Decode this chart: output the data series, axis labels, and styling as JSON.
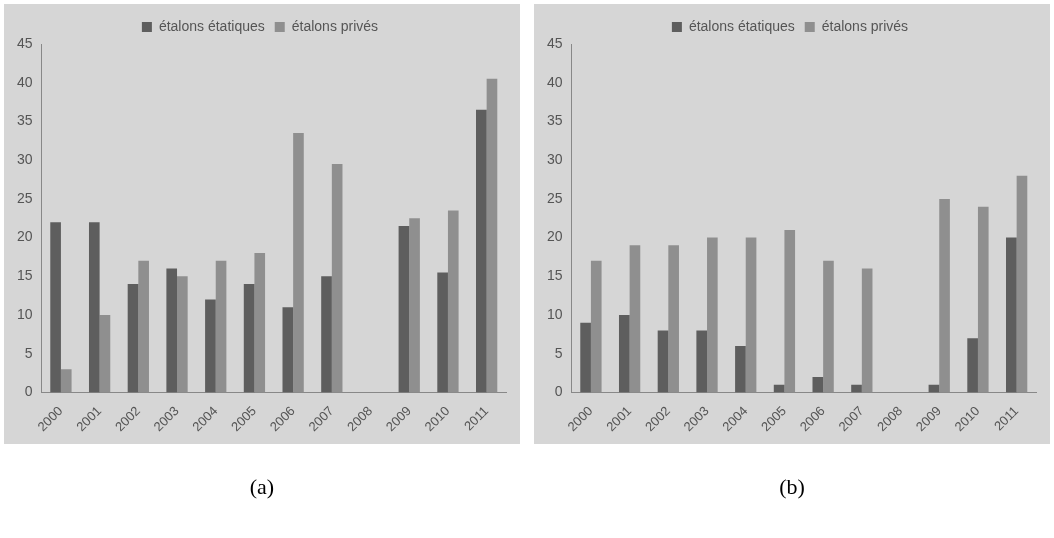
{
  "chart_data": [
    {
      "type": "bar",
      "categories": [
        "2000",
        "2001",
        "2002",
        "2003",
        "2004",
        "2005",
        "2006",
        "2007",
        "2008",
        "2009",
        "2010",
        "2011"
      ],
      "series": [
        {
          "name": "étalons étatiques",
          "color": "#5e5e5e",
          "values": [
            22,
            22,
            14,
            16,
            12,
            14,
            11,
            15,
            0,
            21.5,
            15.5,
            36.5
          ]
        },
        {
          "name": "étalons privés",
          "color": "#8f8f8f",
          "values": [
            3,
            10,
            17,
            15,
            17,
            18,
            33.5,
            29.5,
            0,
            22.5,
            23.5,
            40.5
          ]
        }
      ],
      "ylim": [
        0,
        45
      ],
      "yticks": [
        0,
        5,
        10,
        15,
        20,
        25,
        30,
        35,
        40,
        45
      ],
      "grid": false,
      "legend": "top",
      "annotations": [
        "(a)"
      ]
    },
    {
      "type": "bar",
      "categories": [
        "2000",
        "2001",
        "2002",
        "2003",
        "2004",
        "2005",
        "2006",
        "2007",
        "2008",
        "2009",
        "2010",
        "2011"
      ],
      "series": [
        {
          "name": "étalons étatiques",
          "color": "#5e5e5e",
          "values": [
            9,
            10,
            8,
            8,
            6,
            1,
            2,
            1,
            0,
            1,
            7,
            20
          ]
        },
        {
          "name": "étalons privés",
          "color": "#8f8f8f",
          "values": [
            17,
            19,
            19,
            20,
            20,
            21,
            17,
            16,
            0,
            25,
            24,
            28
          ]
        }
      ],
      "ylim": [
        0,
        45
      ],
      "yticks": [
        0,
        5,
        10,
        15,
        20,
        25,
        30,
        35,
        40,
        45
      ],
      "grid": false,
      "legend": "top",
      "annotations": [
        "(b)"
      ]
    }
  ]
}
